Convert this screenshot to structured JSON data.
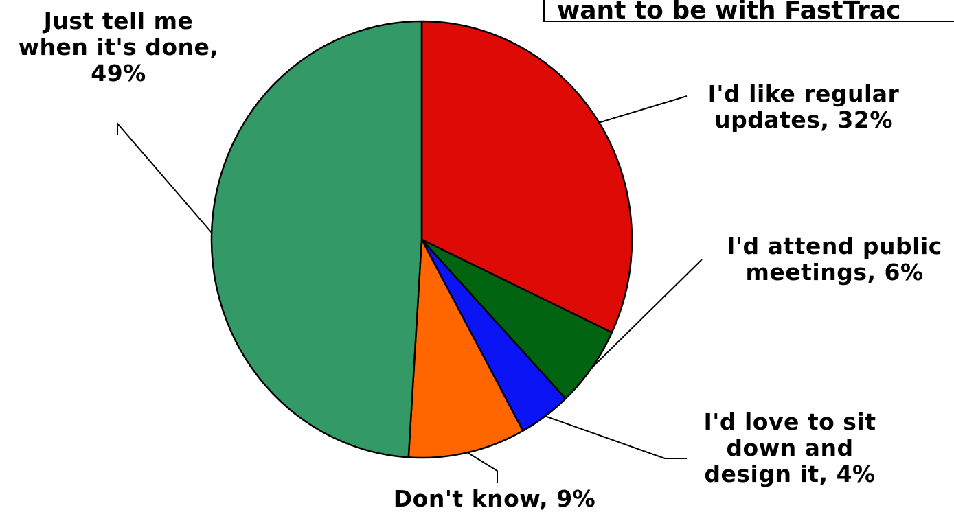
{
  "chart_data": {
    "type": "pie",
    "title": "want to be with FastTrac",
    "start_angle": "12 o'clock",
    "direction": "clockwise",
    "slices": [
      {
        "label_lines": [
          "I'd like regular",
          "updates, 32%"
        ],
        "category": "I'd like regular updates",
        "value": 32,
        "color": "#DD0A05"
      },
      {
        "label_lines": [
          "I'd attend public",
          "meetings, 6%"
        ],
        "category": "I'd attend public meetings",
        "value": 6,
        "color": "#006411"
      },
      {
        "label_lines": [
          "I'd love to sit",
          "down and",
          "design it, 4%"
        ],
        "category": "I'd love to sit down and design it",
        "value": 4,
        "color": "#0A14F5"
      },
      {
        "label_lines": [
          "Don't know, 9%"
        ],
        "category": "Don't know",
        "value": 9,
        "color": "#FF6600"
      },
      {
        "label_lines": [
          "Just tell me",
          "when it's done,",
          "49%"
        ],
        "category": "Just tell me when it's done",
        "value": 49,
        "color": "#339966"
      }
    ]
  }
}
